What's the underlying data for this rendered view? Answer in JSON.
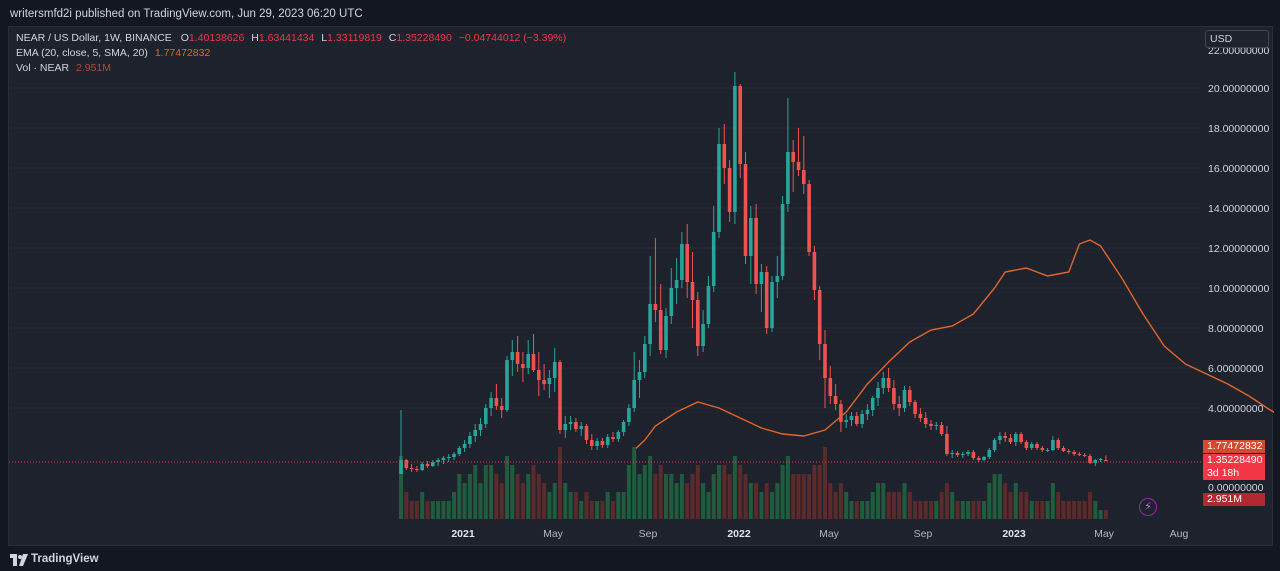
{
  "header": {
    "published": "writersmfd2i published on TradingView.com, Jun 29, 2023 06:20 UTC"
  },
  "legend": {
    "symbol": "NEAR / US Dollar, 1W, BINANCE",
    "open_label": "O",
    "open": "1.40138626",
    "high_label": "H",
    "high": "1.63441434",
    "low_label": "L",
    "low": "1.33119819",
    "close_label": "C",
    "close": "1.35228490",
    "change": "−0.04744012 (−3.39%)",
    "ema_label": "EMA (20, close, 5, SMA, 20)",
    "ema_value": "1.77472832",
    "vol_label": "Vol · NEAR",
    "vol_value": "2.951M"
  },
  "price_axis": {
    "currency": "USD",
    "ticks": [
      "22.00000000",
      "20.00000000",
      "18.00000000",
      "16.00000000",
      "14.00000000",
      "12.00000000",
      "10.00000000",
      "8.00000000",
      "6.00000000",
      "4.00000000",
      "0.00000000"
    ],
    "tags": {
      "ema": "1.77472832",
      "price": "1.35228490",
      "countdown": "3d 18h",
      "volume": "2.951M"
    }
  },
  "time_axis": {
    "ticks": [
      {
        "label": "2021",
        "bold": true,
        "x": 462
      },
      {
        "label": "May",
        "bold": false,
        "x": 552
      },
      {
        "label": "Sep",
        "bold": false,
        "x": 647
      },
      {
        "label": "2022",
        "bold": true,
        "x": 738
      },
      {
        "label": "May",
        "bold": false,
        "x": 828
      },
      {
        "label": "Sep",
        "bold": false,
        "x": 922
      },
      {
        "label": "2023",
        "bold": true,
        "x": 1013
      },
      {
        "label": "May",
        "bold": false,
        "x": 1103
      },
      {
        "label": "Aug",
        "bold": false,
        "x": 1178
      }
    ]
  },
  "footer": {
    "brand": "TradingView"
  },
  "colors": {
    "background": "#131722",
    "panel": "#1e222d",
    "up": "#26a69a",
    "down": "#ef5350",
    "ema": "#e2652a",
    "vol_up": "#1f5c3e",
    "vol_down": "#5c2a2a"
  },
  "chart_data": {
    "type": "candlestick",
    "symbol": "NEAR / US Dollar",
    "interval": "1W",
    "exchange": "BINANCE",
    "y_unit": "USD",
    "ylim": [
      0,
      22
    ],
    "x_start": "2020-10-12",
    "x_step_days": 7,
    "candles": [
      [
        0.7,
        3.9,
        0.7,
        1.4,
        7
      ],
      [
        1.4,
        1.45,
        0.9,
        1.0,
        3
      ],
      [
        1.0,
        1.2,
        0.8,
        0.95,
        2
      ],
      [
        0.95,
        1.1,
        0.8,
        0.9,
        2
      ],
      [
        0.9,
        1.3,
        0.85,
        1.2,
        3
      ],
      [
        1.2,
        1.35,
        1.0,
        1.1,
        2
      ],
      [
        1.1,
        1.4,
        1.05,
        1.3,
        2
      ],
      [
        1.3,
        1.5,
        1.1,
        1.4,
        2
      ],
      [
        1.4,
        1.6,
        1.2,
        1.5,
        2
      ],
      [
        1.5,
        1.7,
        1.3,
        1.55,
        2
      ],
      [
        1.55,
        1.8,
        1.4,
        1.7,
        3
      ],
      [
        1.7,
        2.1,
        1.6,
        2.0,
        5
      ],
      [
        2.0,
        2.4,
        1.8,
        2.2,
        4
      ],
      [
        2.2,
        2.8,
        2.0,
        2.6,
        5
      ],
      [
        2.6,
        3.2,
        2.3,
        2.9,
        6
      ],
      [
        2.9,
        3.5,
        2.6,
        3.2,
        4
      ],
      [
        3.2,
        4.2,
        3.0,
        4.0,
        6
      ],
      [
        4.0,
        4.8,
        3.6,
        4.5,
        6
      ],
      [
        4.5,
        5.2,
        3.9,
        4.1,
        5
      ],
      [
        4.1,
        4.5,
        3.5,
        3.9,
        4
      ],
      [
        3.9,
        6.6,
        3.8,
        6.4,
        7
      ],
      [
        6.4,
        7.4,
        5.6,
        6.8,
        6
      ],
      [
        6.8,
        7.6,
        5.8,
        6.2,
        5
      ],
      [
        6.2,
        6.8,
        5.3,
        6.0,
        4
      ],
      [
        6.0,
        7.4,
        5.7,
        6.7,
        5
      ],
      [
        6.7,
        7.7,
        5.8,
        5.9,
        6
      ],
      [
        5.9,
        6.8,
        4.6,
        5.4,
        5
      ],
      [
        5.4,
        6.2,
        4.9,
        5.2,
        4
      ],
      [
        5.2,
        5.9,
        4.5,
        5.5,
        3
      ],
      [
        5.5,
        7.0,
        4.8,
        6.3,
        4
      ],
      [
        6.3,
        6.4,
        2.7,
        2.9,
        8
      ],
      [
        2.9,
        3.6,
        2.5,
        3.2,
        4
      ],
      [
        3.2,
        3.6,
        2.9,
        3.3,
        3
      ],
      [
        3.3,
        3.5,
        2.8,
        2.95,
        3
      ],
      [
        2.95,
        3.3,
        2.6,
        3.1,
        2
      ],
      [
        3.1,
        3.2,
        2.2,
        2.4,
        3
      ],
      [
        2.4,
        2.7,
        1.9,
        2.1,
        2
      ],
      [
        2.1,
        2.5,
        1.9,
        2.35,
        2
      ],
      [
        2.35,
        2.5,
        2.0,
        2.15,
        2
      ],
      [
        2.15,
        2.7,
        2.0,
        2.55,
        3
      ],
      [
        2.55,
        2.8,
        2.3,
        2.45,
        2
      ],
      [
        2.45,
        2.9,
        2.3,
        2.8,
        3
      ],
      [
        2.8,
        3.4,
        2.6,
        3.3,
        3
      ],
      [
        3.3,
        4.2,
        3.1,
        4.0,
        6
      ],
      [
        4.0,
        6.8,
        3.8,
        5.4,
        8
      ],
      [
        5.4,
        6.4,
        4.5,
        5.8,
        5
      ],
      [
        5.8,
        7.6,
        5.5,
        7.2,
        6
      ],
      [
        7.2,
        11.6,
        6.6,
        9.2,
        7
      ],
      [
        9.2,
        12.5,
        8.3,
        8.9,
        5
      ],
      [
        8.9,
        10.2,
        6.7,
        6.9,
        6
      ],
      [
        6.9,
        9.0,
        6.5,
        8.6,
        5
      ],
      [
        8.6,
        11.0,
        8.2,
        10.0,
        5
      ],
      [
        10.0,
        11.5,
        9.2,
        10.4,
        4
      ],
      [
        10.4,
        12.8,
        10.0,
        12.2,
        5
      ],
      [
        12.2,
        13.2,
        9.5,
        10.3,
        4
      ],
      [
        10.3,
        11.8,
        8.0,
        9.4,
        5
      ],
      [
        9.4,
        9.8,
        6.6,
        7.1,
        6
      ],
      [
        7.1,
        8.9,
        6.8,
        8.2,
        4
      ],
      [
        8.2,
        10.6,
        8.0,
        10.1,
        3
      ],
      [
        10.1,
        14.1,
        9.8,
        12.8,
        5
      ],
      [
        12.8,
        18.0,
        12.5,
        17.2,
        6
      ],
      [
        17.2,
        18.2,
        15.2,
        16.0,
        6
      ],
      [
        16.0,
        16.4,
        13.3,
        13.8,
        5
      ],
      [
        13.8,
        20.8,
        13.2,
        20.1,
        7
      ],
      [
        20.1,
        20.2,
        15.5,
        16.2,
        6
      ],
      [
        16.2,
        16.8,
        11.2,
        11.6,
        5
      ],
      [
        11.6,
        14.1,
        10.2,
        13.5,
        4
      ],
      [
        13.5,
        14.2,
        9.7,
        10.2,
        4
      ],
      [
        10.2,
        11.2,
        8.8,
        10.8,
        3
      ],
      [
        10.8,
        11.1,
        7.7,
        8.0,
        4
      ],
      [
        8.0,
        10.6,
        7.8,
        10.3,
        3
      ],
      [
        10.3,
        11.6,
        9.5,
        10.6,
        4
      ],
      [
        10.6,
        14.6,
        10.4,
        14.2,
        6
      ],
      [
        14.2,
        19.5,
        13.8,
        16.8,
        7
      ],
      [
        16.8,
        17.4,
        14.8,
        16.3,
        5
      ],
      [
        16.3,
        18.0,
        15.6,
        15.9,
        5
      ],
      [
        15.9,
        17.6,
        14.7,
        15.2,
        5
      ],
      [
        15.2,
        15.4,
        11.6,
        11.8,
        5
      ],
      [
        11.8,
        12.1,
        9.4,
        9.9,
        6
      ],
      [
        9.9,
        10.1,
        6.4,
        7.2,
        6
      ],
      [
        7.2,
        7.9,
        4.0,
        5.5,
        8
      ],
      [
        5.5,
        6.1,
        4.2,
        4.6,
        4
      ],
      [
        4.6,
        5.2,
        3.9,
        4.2,
        3
      ],
      [
        4.2,
        4.4,
        2.8,
        3.3,
        4
      ],
      [
        3.3,
        3.7,
        3.0,
        3.4,
        3
      ],
      [
        3.4,
        3.8,
        3.1,
        3.6,
        2
      ],
      [
        3.6,
        3.8,
        3.1,
        3.2,
        2
      ],
      [
        3.2,
        3.9,
        3.0,
        3.7,
        2
      ],
      [
        3.7,
        4.2,
        3.4,
        3.9,
        2
      ],
      [
        3.9,
        4.6,
        3.6,
        4.5,
        3
      ],
      [
        4.5,
        5.3,
        4.1,
        5.0,
        4
      ],
      [
        5.0,
        5.8,
        4.7,
        5.5,
        4
      ],
      [
        5.5,
        6.0,
        4.8,
        5.0,
        3
      ],
      [
        5.0,
        5.4,
        3.9,
        4.2,
        3
      ],
      [
        4.2,
        4.6,
        3.6,
        4.0,
        3
      ],
      [
        4.0,
        5.1,
        3.8,
        4.9,
        4
      ],
      [
        4.9,
        5.1,
        4.1,
        4.3,
        3
      ],
      [
        4.3,
        4.4,
        3.5,
        3.7,
        2
      ],
      [
        3.7,
        4.0,
        3.3,
        3.5,
        2
      ],
      [
        3.5,
        3.8,
        3.0,
        3.2,
        2
      ],
      [
        3.2,
        3.4,
        2.9,
        3.1,
        2
      ],
      [
        3.1,
        3.3,
        2.9,
        3.15,
        2
      ],
      [
        3.15,
        3.3,
        2.6,
        2.7,
        3
      ],
      [
        2.7,
        3.1,
        1.6,
        1.7,
        4
      ],
      [
        1.7,
        1.9,
        1.5,
        1.75,
        3
      ],
      [
        1.75,
        1.85,
        1.55,
        1.65,
        2
      ],
      [
        1.65,
        1.8,
        1.5,
        1.7,
        2
      ],
      [
        1.7,
        1.9,
        1.6,
        1.8,
        2
      ],
      [
        1.8,
        1.9,
        1.4,
        1.5,
        2
      ],
      [
        1.5,
        1.6,
        1.3,
        1.4,
        2
      ],
      [
        1.4,
        1.6,
        1.35,
        1.55,
        2
      ],
      [
        1.55,
        2.0,
        1.45,
        1.9,
        4
      ],
      [
        1.9,
        2.5,
        1.8,
        2.4,
        5
      ],
      [
        2.4,
        2.8,
        2.2,
        2.6,
        5
      ],
      [
        2.6,
        2.8,
        2.3,
        2.5,
        4
      ],
      [
        2.5,
        2.7,
        2.2,
        2.3,
        3
      ],
      [
        2.3,
        2.8,
        2.1,
        2.7,
        4
      ],
      [
        2.7,
        2.8,
        2.2,
        2.3,
        3
      ],
      [
        2.3,
        2.4,
        1.9,
        2.0,
        3
      ],
      [
        2.0,
        2.3,
        1.9,
        2.2,
        2
      ],
      [
        2.2,
        2.3,
        1.9,
        2.0,
        2
      ],
      [
        2.0,
        2.1,
        1.8,
        1.9,
        2
      ],
      [
        1.9,
        2.0,
        1.8,
        1.9,
        2
      ],
      [
        1.9,
        2.6,
        1.85,
        2.4,
        4
      ],
      [
        2.4,
        2.5,
        1.9,
        2.0,
        3
      ],
      [
        2.0,
        2.1,
        1.8,
        1.85,
        2
      ],
      [
        1.85,
        1.95,
        1.7,
        1.8,
        2
      ],
      [
        1.8,
        1.9,
        1.6,
        1.7,
        2
      ],
      [
        1.7,
        1.8,
        1.6,
        1.65,
        2
      ],
      [
        1.65,
        1.75,
        1.55,
        1.6,
        2
      ],
      [
        1.6,
        1.7,
        1.2,
        1.25,
        3
      ],
      [
        1.25,
        1.45,
        1.1,
        1.4,
        2
      ],
      [
        1.4,
        1.5,
        1.3,
        1.45,
        1
      ],
      [
        1.4,
        1.63,
        1.33,
        1.35,
        1
      ]
    ],
    "ema": [
      [
        44,
        1.9
      ],
      [
        46,
        2.4
      ],
      [
        48,
        3.1
      ],
      [
        52,
        3.8
      ],
      [
        56,
        4.3
      ],
      [
        60,
        4.0
      ],
      [
        64,
        3.5
      ],
      [
        68,
        3.0
      ],
      [
        72,
        2.7
      ],
      [
        76,
        2.6
      ],
      [
        80,
        2.9
      ],
      [
        84,
        3.8
      ],
      [
        88,
        5.2
      ],
      [
        92,
        6.3
      ],
      [
        96,
        7.3
      ],
      [
        100,
        7.9
      ],
      [
        104,
        8.1
      ],
      [
        108,
        8.7
      ],
      [
        112,
        10.0
      ],
      [
        114,
        10.8
      ],
      [
        118,
        11.0
      ],
      [
        122,
        10.6
      ],
      [
        126,
        10.8
      ],
      [
        128,
        12.2
      ],
      [
        130,
        12.4
      ],
      [
        132,
        12.1
      ],
      [
        136,
        10.5
      ],
      [
        140,
        8.7
      ],
      [
        144,
        7.1
      ],
      [
        148,
        6.2
      ],
      [
        152,
        5.7
      ],
      [
        156,
        5.2
      ],
      [
        160,
        4.6
      ],
      [
        164,
        3.9
      ],
      [
        168,
        3.3
      ],
      [
        172,
        2.9
      ],
      [
        176,
        2.6
      ],
      [
        180,
        2.6
      ],
      [
        184,
        2.5
      ],
      [
        188,
        2.4
      ],
      [
        192,
        2.2
      ],
      [
        196,
        1.9
      ],
      [
        198,
        1.8
      ]
    ]
  }
}
